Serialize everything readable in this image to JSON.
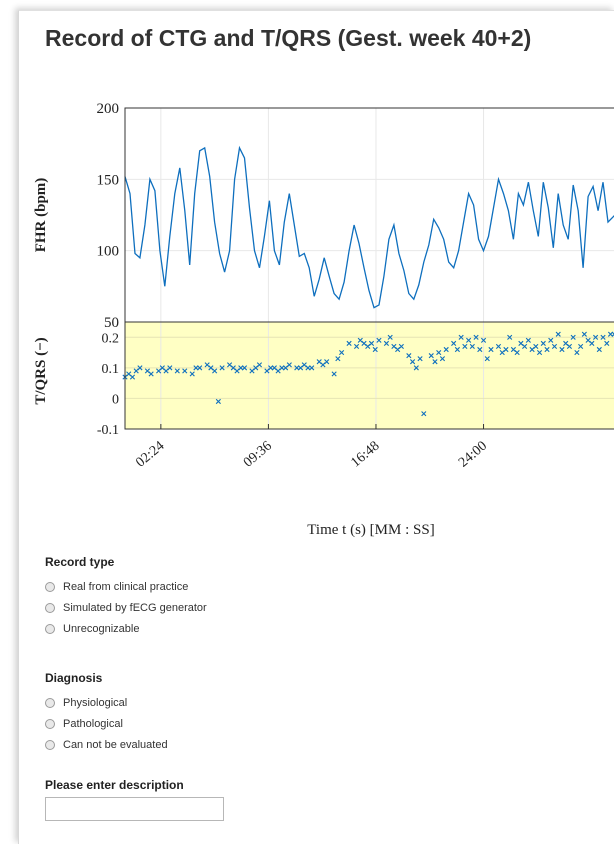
{
  "page": {
    "title": "Record of CTG and T/QRS (Gest. week 40+2)"
  },
  "colors": {
    "series": "#0e6fbe",
    "lower_panel_bg": "#ffffc4",
    "grid": "#e8e8e8"
  },
  "chart_data": [
    {
      "type": "line",
      "ylabel": "FHR (bpm)",
      "ylim": [
        50,
        200
      ],
      "yticks": [
        50,
        100,
        150,
        200
      ],
      "xlim": [
        0,
        1968
      ],
      "x_ticks_seconds": [
        144,
        576,
        1008,
        1440
      ],
      "grid": true,
      "series": [
        {
          "x": [
            0,
            20,
            40,
            60,
            80,
            100,
            120,
            140,
            160,
            180,
            200,
            220,
            240,
            260,
            280,
            300,
            320,
            340,
            360,
            380,
            400,
            420,
            440,
            460,
            480,
            500,
            520,
            540,
            560,
            580,
            600,
            620,
            640,
            660,
            680,
            700,
            720,
            740,
            760,
            780,
            800,
            820,
            840,
            860,
            880,
            900,
            920,
            940,
            960,
            980,
            1000,
            1020,
            1040,
            1060,
            1080,
            1100,
            1120,
            1140,
            1160,
            1180,
            1200,
            1220,
            1240,
            1260,
            1280,
            1300,
            1320,
            1340,
            1360,
            1380,
            1400,
            1420,
            1440,
            1460,
            1480,
            1500,
            1520,
            1540,
            1560,
            1580,
            1600,
            1620,
            1640,
            1660,
            1680,
            1700,
            1720,
            1740,
            1760,
            1780,
            1800,
            1820,
            1840,
            1860,
            1880,
            1900,
            1920,
            1940,
            1968
          ],
          "values": [
            152,
            140,
            98,
            95,
            118,
            150,
            142,
            100,
            75,
            110,
            140,
            158,
            128,
            90,
            140,
            170,
            172,
            152,
            120,
            98,
            85,
            100,
            150,
            172,
            165,
            130,
            100,
            88,
            110,
            135,
            100,
            90,
            120,
            140,
            118,
            96,
            98,
            88,
            68,
            80,
            95,
            82,
            70,
            66,
            78,
            100,
            118,
            105,
            88,
            72,
            60,
            62,
            82,
            108,
            118,
            98,
            86,
            70,
            66,
            76,
            92,
            104,
            122,
            116,
            108,
            92,
            88,
            100,
            120,
            140,
            132,
            108,
            100,
            110,
            130,
            150,
            140,
            128,
            108,
            140,
            132,
            148,
            128,
            110,
            148,
            130,
            102,
            140,
            118,
            108,
            146,
            128,
            88,
            138,
            145,
            128,
            148,
            120,
            125
          ]
        }
      ]
    },
    {
      "type": "scatter",
      "xlabel": "Time t (s) [MM : SS]",
      "ylabel": "T/QRS (−)",
      "ylim": [
        -0.1,
        0.25
      ],
      "yticks": [
        -0.1,
        0,
        0.1,
        0.2
      ],
      "xlim": [
        0,
        1968
      ],
      "x_ticks_seconds": [
        144,
        576,
        1008,
        1440
      ],
      "x_tick_labels": [
        "02:24",
        "09:36",
        "16:48",
        "24:00"
      ],
      "grid": true,
      "series": [
        {
          "x": [
            0,
            15,
            30,
            45,
            60,
            90,
            105,
            135,
            150,
            165,
            180,
            210,
            240,
            270,
            285,
            300,
            330,
            345,
            360,
            375,
            390,
            420,
            435,
            450,
            465,
            480,
            510,
            525,
            540,
            570,
            585,
            600,
            615,
            630,
            645,
            660,
            690,
            705,
            720,
            735,
            750,
            780,
            795,
            810,
            840,
            855,
            870,
            900,
            930,
            945,
            960,
            975,
            990,
            1005,
            1020,
            1050,
            1065,
            1080,
            1095,
            1110,
            1140,
            1155,
            1170,
            1185,
            1200,
            1230,
            1245,
            1260,
            1275,
            1290,
            1320,
            1335,
            1350,
            1365,
            1380,
            1395,
            1410,
            1425,
            1440,
            1455,
            1470,
            1500,
            1515,
            1530,
            1545,
            1560,
            1575,
            1590,
            1605,
            1620,
            1635,
            1650,
            1665,
            1680,
            1695,
            1710,
            1725,
            1740,
            1755,
            1770,
            1785,
            1800,
            1815,
            1830,
            1845,
            1860,
            1875,
            1890,
            1905,
            1920,
            1935,
            1950,
            1965
          ],
          "values": [
            0.07,
            0.08,
            0.07,
            0.09,
            0.1,
            0.09,
            0.08,
            0.09,
            0.1,
            0.09,
            0.1,
            0.09,
            0.09,
            0.08,
            0.1,
            0.1,
            0.11,
            0.1,
            0.09,
            -0.01,
            0.1,
            0.11,
            0.1,
            0.09,
            0.1,
            0.1,
            0.09,
            0.1,
            0.11,
            0.09,
            0.1,
            0.1,
            0.09,
            0.1,
            0.1,
            0.11,
            0.1,
            0.1,
            0.11,
            0.1,
            0.1,
            0.12,
            0.11,
            0.12,
            0.08,
            0.13,
            0.15,
            0.18,
            0.17,
            0.19,
            0.18,
            0.17,
            0.18,
            0.16,
            0.19,
            0.18,
            0.2,
            0.17,
            0.16,
            0.17,
            0.14,
            0.12,
            0.1,
            0.13,
            -0.05,
            0.14,
            0.12,
            0.15,
            0.13,
            0.16,
            0.18,
            0.16,
            0.2,
            0.17,
            0.19,
            0.17,
            0.2,
            0.16,
            0.19,
            0.13,
            0.16,
            0.17,
            0.15,
            0.16,
            0.2,
            0.16,
            0.15,
            0.18,
            0.17,
            0.19,
            0.16,
            0.17,
            0.15,
            0.18,
            0.16,
            0.19,
            0.17,
            0.21,
            0.16,
            0.18,
            0.17,
            0.2,
            0.15,
            0.17,
            0.21,
            0.19,
            0.18,
            0.2,
            0.16,
            0.2,
            0.18,
            0.21,
            0.21
          ]
        }
      ]
    }
  ],
  "record_type": {
    "title": "Record type",
    "options": [
      "Real from clinical practice",
      "Simulated by fECG generator",
      "Unrecognizable"
    ]
  },
  "diagnosis": {
    "title": "Diagnosis",
    "options": [
      "Physiological",
      "Pathological",
      "Can not be evaluated"
    ]
  },
  "description": {
    "title": "Please enter description",
    "value": ""
  }
}
